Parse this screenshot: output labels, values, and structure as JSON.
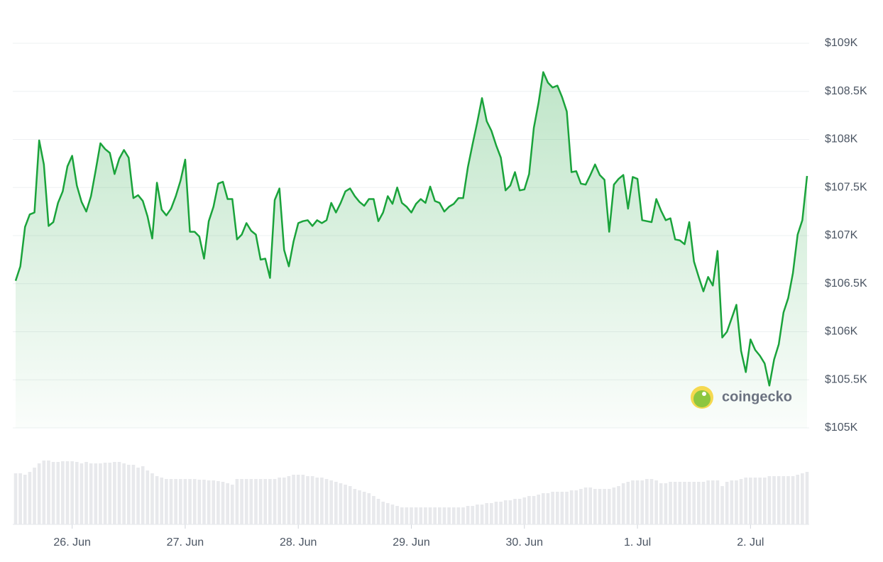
{
  "chart_data": {
    "type": "area",
    "categories": [
      null,
      null,
      null,
      null,
      null,
      null,
      null,
      null,
      null,
      null,
      null,
      null,
      "26. Jun",
      null,
      null,
      null,
      null,
      null,
      null,
      null,
      null,
      null,
      null,
      null,
      null,
      null,
      null,
      null,
      null,
      null,
      null,
      null,
      null,
      null,
      null,
      null,
      "27. Jun",
      null,
      null,
      null,
      null,
      null,
      null,
      null,
      null,
      null,
      null,
      null,
      null,
      null,
      null,
      null,
      null,
      null,
      null,
      null,
      null,
      null,
      null,
      null,
      "28. Jun",
      null,
      null,
      null,
      null,
      null,
      null,
      null,
      null,
      null,
      null,
      null,
      null,
      null,
      null,
      null,
      null,
      null,
      null,
      null,
      null,
      null,
      null,
      null,
      "29. Jun",
      null,
      null,
      null,
      null,
      null,
      null,
      null,
      null,
      null,
      null,
      null,
      null,
      null,
      null,
      null,
      null,
      null,
      null,
      null,
      null,
      null,
      null,
      null,
      "30. Jun",
      null,
      null,
      null,
      null,
      null,
      null,
      null,
      null,
      null,
      null,
      null,
      null,
      null,
      null,
      null,
      null,
      null,
      null,
      null,
      null,
      null,
      null,
      null,
      "1. Jul",
      null,
      null,
      null,
      null,
      null,
      null,
      null,
      null,
      null,
      null,
      null,
      null,
      null,
      null,
      null,
      null,
      null,
      null,
      null,
      null,
      null,
      null,
      null,
      "2. Jul",
      null,
      null,
      null,
      null,
      null,
      null,
      null,
      null,
      null,
      null,
      null,
      null
    ],
    "values": [
      106530,
      106680,
      107090,
      107220,
      107240,
      107990,
      107740,
      107100,
      107140,
      107340,
      107460,
      107720,
      107830,
      107520,
      107350,
      107250,
      107410,
      107680,
      107960,
      107900,
      107860,
      107640,
      107800,
      107890,
      107810,
      107390,
      107420,
      107360,
      107200,
      106970,
      107550,
      107270,
      107210,
      107280,
      107410,
      107570,
      107790,
      107040,
      107040,
      106990,
      106760,
      107150,
      107300,
      107540,
      107560,
      107380,
      107380,
      106960,
      107010,
      107130,
      107050,
      107010,
      106750,
      106760,
      106560,
      107370,
      107490,
      106850,
      106680,
      106940,
      107130,
      107150,
      107160,
      107100,
      107160,
      107130,
      107160,
      107340,
      107240,
      107340,
      107460,
      107490,
      107410,
      107350,
      107310,
      107380,
      107380,
      107150,
      107240,
      107410,
      107330,
      107500,
      107340,
      107300,
      107240,
      107330,
      107380,
      107340,
      107510,
      107360,
      107340,
      107250,
      107300,
      107330,
      107390,
      107390,
      107710,
      107950,
      108180,
      108430,
      108190,
      108090,
      107940,
      107810,
      107470,
      107520,
      107660,
      107470,
      107480,
      107640,
      108120,
      108380,
      108700,
      108590,
      108540,
      108560,
      108440,
      108290,
      107660,
      107670,
      107540,
      107530,
      107630,
      107740,
      107630,
      107580,
      107040,
      107530,
      107590,
      107630,
      107280,
      107610,
      107590,
      107160,
      107150,
      107140,
      107380,
      107260,
      107160,
      107180,
      106960,
      106950,
      106910,
      107140,
      106730,
      106570,
      106420,
      106570,
      106480,
      106840,
      105940,
      106000,
      106140,
      106280,
      105800,
      105580,
      105920,
      105810,
      105750,
      105670,
      105440,
      105710,
      105870,
      106200,
      106350,
      106610,
      107010,
      107160,
      107620
    ],
    "color": "#1aa33b",
    "ylim": [
      105000,
      109000
    ],
    "yticks": [
      {
        "value": 105000,
        "label": "$105K"
      },
      {
        "value": 105500,
        "label": "$105.5K"
      },
      {
        "value": 106000,
        "label": "$106K"
      },
      {
        "value": 106500,
        "label": "$106.5K"
      },
      {
        "value": 107000,
        "label": "$107K"
      },
      {
        "value": 107500,
        "label": "$107.5K"
      },
      {
        "value": 108000,
        "label": "$108K"
      },
      {
        "value": 108500,
        "label": "$108.5K"
      },
      {
        "value": 109000,
        "label": "$109K"
      }
    ],
    "grid": true,
    "volume": {
      "color": "#e8e9ec",
      "values": [
        72,
        72,
        70,
        74,
        80,
        86,
        90,
        90,
        88,
        88,
        89,
        89,
        89,
        88,
        86,
        88,
        86,
        86,
        86,
        87,
        87,
        88,
        88,
        86,
        84,
        84,
        80,
        82,
        76,
        72,
        68,
        66,
        64,
        64,
        64,
        64,
        64,
        64,
        64,
        63,
        63,
        62,
        62,
        61,
        60,
        58,
        56,
        64,
        64,
        64,
        64,
        64,
        64,
        64,
        64,
        64,
        66,
        66,
        68,
        70,
        70,
        70,
        68,
        68,
        66,
        66,
        64,
        62,
        60,
        58,
        56,
        54,
        50,
        48,
        46,
        44,
        40,
        36,
        32,
        30,
        28,
        26,
        24,
        24,
        24,
        24,
        24,
        24,
        24,
        24,
        24,
        24,
        24,
        24,
        24,
        24,
        26,
        26,
        28,
        28,
        30,
        30,
        32,
        32,
        34,
        34,
        36,
        36,
        38,
        40,
        40,
        42,
        44,
        44,
        46,
        46,
        46,
        46,
        48,
        48,
        50,
        52,
        52,
        50,
        50,
        50,
        50,
        52,
        54,
        58,
        60,
        62,
        62,
        62,
        64,
        64,
        62,
        58,
        58,
        60,
        60,
        60,
        60,
        60,
        60,
        60,
        60,
        62,
        62,
        62,
        54,
        60,
        62,
        62,
        64,
        66,
        66,
        66,
        66,
        66,
        68,
        68,
        68,
        68,
        68,
        68,
        70,
        72,
        74
      ]
    },
    "watermark": "coingecko"
  }
}
